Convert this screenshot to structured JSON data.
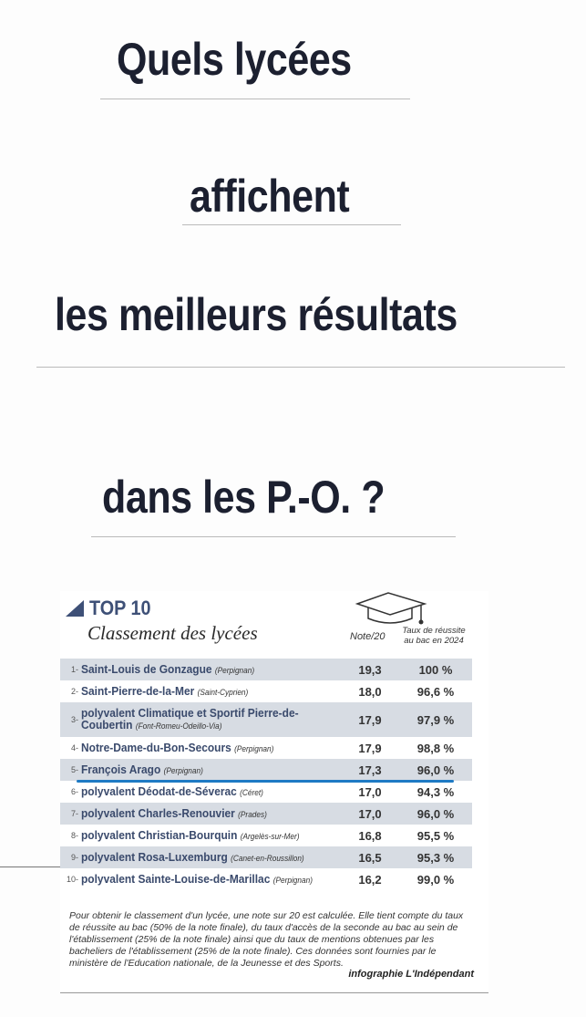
{
  "headline": [
    "Quels lycées",
    "affichent",
    "les meilleurs résultats",
    "dans les P.-O. ?"
  ],
  "infographic": {
    "label": "TOP 10",
    "title": "Classement des lycées",
    "columns": {
      "note": "Note/20",
      "rate": "Taux de réussite au bac en 2024"
    },
    "rows": [
      {
        "rank": "1-",
        "name": "Saint-Louis de Gonzague",
        "city": "(Perpignan)",
        "note": "19,3",
        "rate": "100 %"
      },
      {
        "rank": "2-",
        "name": "Saint-Pierre-de-la-Mer",
        "city": "(Saint-Cyprien)",
        "note": "18,0",
        "rate": "96,6 %"
      },
      {
        "rank": "3-",
        "name": "polyvalent Climatique et Sportif Pierre-de-Coubertin",
        "city": "(Font-Romeu-Odeillo-Via)",
        "note": "17,9",
        "rate": "97,9 %"
      },
      {
        "rank": "4-",
        "name": "Notre-Dame-du-Bon-Secours",
        "city": "(Perpignan)",
        "note": "17,9",
        "rate": "98,8 %"
      },
      {
        "rank": "5-",
        "name": "François Arago",
        "city": "(Perpignan)",
        "note": "17,3",
        "rate": "96,0 %"
      },
      {
        "rank": "6-",
        "name": "polyvalent Déodat-de-Séverac",
        "city": "(Céret)",
        "note": "17,0",
        "rate": "94,3 %"
      },
      {
        "rank": "7-",
        "name": "polyvalent Charles-Renouvier",
        "city": "(Prades)",
        "note": "17,0",
        "rate": "96,0 %"
      },
      {
        "rank": "8-",
        "name": "polyvalent Christian-Bourquin",
        "city": "(Argelès-sur-Mer)",
        "note": "16,8",
        "rate": "95,5 %"
      },
      {
        "rank": "9-",
        "name": "polyvalent Rosa-Luxemburg",
        "city": "(Canet-en-Roussillon)",
        "note": "16,5",
        "rate": "95,3 %"
      },
      {
        "rank": "10-",
        "name": "polyvalent Sainte-Louise-de-Marillac",
        "city": "(Perpignan)",
        "note": "16,2",
        "rate": "99,0 %"
      }
    ],
    "footnote": "Pour obtenir le classement d'un lycée, une note sur 20 est calculée. Elle tient compte du taux de réussite au bac (50% de la note finale), du taux d'accès de la seconde au bac au sein de l'établissement (25% de la note finale) ainsi que du taux de mentions obtenues par les bacheliers de l'établissement (25% de la note finale). Ces données sont fournies par le ministère de l'Education nationale, de la Jeunesse et des Sports.",
    "credit": "infographie L'Indépendant"
  }
}
